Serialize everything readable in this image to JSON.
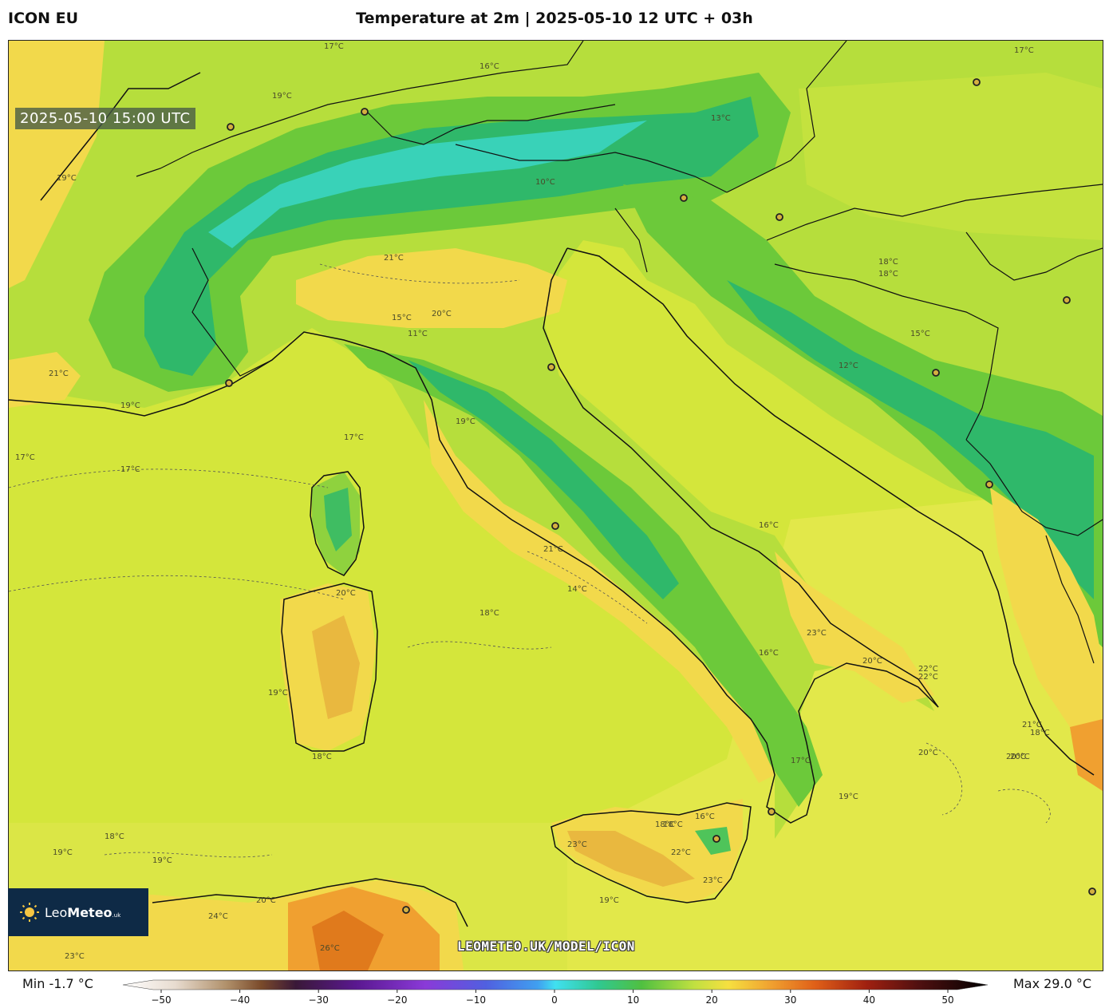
{
  "header": {
    "model_name": "ICON EU",
    "title": "Temperature at 2m | 2025-05-10 12 UTC + 03h"
  },
  "map": {
    "valid_time": "2025-05-10 15:00 UTC",
    "watermark": "LEOMETEO.UK/MODEL/ICON",
    "contour_labels": [
      "17°C",
      "16°C",
      "17°C",
      "19°C",
      "21°C",
      "18°C",
      "20°C",
      "19°C",
      "13°C",
      "11°C",
      "12°C",
      "10°C",
      "15°C",
      "18°C",
      "22°C",
      "17°C",
      "19°C",
      "21°C",
      "18°C",
      "16°C",
      "20°C",
      "15°C",
      "19°C",
      "17°C",
      "16°C",
      "14°C",
      "18°C",
      "19°C",
      "17°C",
      "21°C",
      "18°C",
      "20°C",
      "23°C",
      "22°C",
      "20°C",
      "18°C",
      "19°C",
      "19°C",
      "17°C",
      "18°C",
      "20°C",
      "21°C",
      "23°C",
      "24°C",
      "26°C",
      "23°C",
      "22°C",
      "23°C",
      "18°C",
      "16°C",
      "19°C",
      "20°C",
      "20°C",
      "19°C"
    ],
    "city_count": 15
  },
  "brand": {
    "logo_text_light": "Leo",
    "logo_text_bold": "Meteo",
    "logo_suffix": ".uk"
  },
  "legend": {
    "min_label": "Min -1.7 °C",
    "max_label": "Max 29.0 °C",
    "unit": "°C",
    "range": [
      -50,
      50
    ],
    "ticks": [
      "−50",
      "−40",
      "−30",
      "−20",
      "−10",
      "0",
      "10",
      "20",
      "30",
      "40",
      "50"
    ]
  },
  "colors": {
    "sea": "#d4e63b",
    "warm_land": "#f5d548",
    "hot": "#f0a030",
    "very_hot": "#e07a1c",
    "green": "#7fcf3a",
    "mountain": "#2fb86a",
    "cold_peak": "#39d2b8",
    "brand_navy": "#0e2a46"
  }
}
